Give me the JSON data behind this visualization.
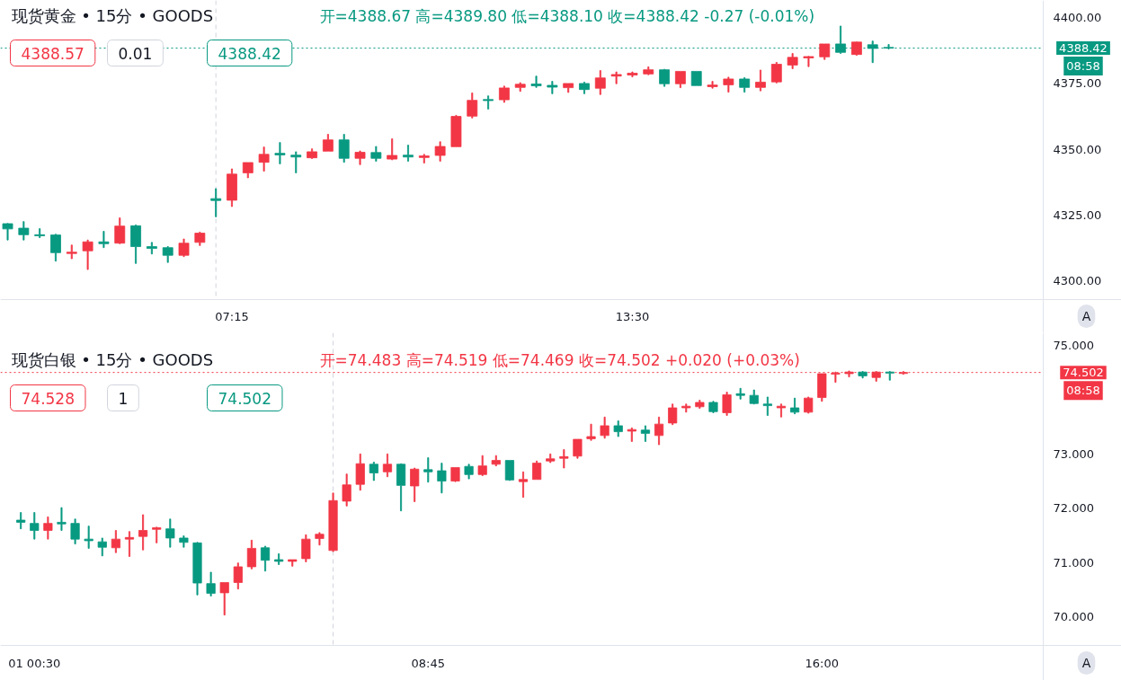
{
  "chart_data": [
    {
      "type": "candlestick",
      "title": "现货黄金 • 15分 • GOODS",
      "subtitle": "开=4388.67 高=4389.80 低=4388.10 收=4388.42 -0.27 (-0.01%)",
      "categories": [
        null,
        null,
        null,
        null,
        null,
        null,
        null,
        null,
        null,
        null,
        null,
        null,
        null,
        null,
        "07:15",
        null,
        null,
        null,
        null,
        null,
        null,
        null,
        null,
        null,
        null,
        null,
        null,
        null,
        null,
        null,
        null,
        null,
        null,
        null,
        null,
        null,
        null,
        null,
        null,
        "13:30",
        null,
        null,
        null,
        null,
        null,
        null,
        null,
        null,
        null,
        null,
        null,
        null,
        null,
        null,
        null,
        null,
        null,
        null,
        null,
        null,
        null,
        null,
        null,
        null,
        null
      ],
      "ohlc": [
        [
          4321.8,
          4321.9,
          4315.6,
          4319.8
        ],
        [
          4320.1,
          4322.6,
          4315.6,
          4317.6
        ],
        [
          4317.6,
          4319.9,
          4316.5,
          4317.2
        ],
        [
          4317.5,
          4317.8,
          4307.6,
          4310.8
        ],
        [
          4310.5,
          4313.7,
          4308.5,
          4311.0
        ],
        [
          4311.5,
          4315.6,
          4304.4,
          4314.9
        ],
        [
          4314.9,
          4318.9,
          4312.7,
          4314.2
        ],
        [
          4314.4,
          4324.0,
          4314.2,
          4320.9
        ],
        [
          4321.0,
          4321.3,
          4306.7,
          4313.1
        ],
        [
          4313.1,
          4314.7,
          4310.3,
          4312.4
        ],
        [
          4312.7,
          4313.1,
          4307.1,
          4309.8
        ],
        [
          4309.8,
          4316.0,
          4309.3,
          4314.4
        ],
        [
          4314.7,
          4318.6,
          4313.5,
          4318.2
        ],
        [
          4331.3,
          4335.1,
          4324.4,
          4330.6
        ],
        [
          4330.7,
          4342.6,
          4328.3,
          4340.6
        ],
        [
          4341.1,
          4345.0,
          4339.2,
          4345.0
        ],
        [
          4345.1,
          4350.9,
          4341.7,
          4348.1
        ],
        [
          4348.5,
          4352.6,
          4344.5,
          4347.9
        ],
        [
          4347.8,
          4349.1,
          4341.1,
          4347.1
        ],
        [
          4346.8,
          4350.2,
          4346.5,
          4349.1
        ],
        [
          4349.3,
          4355.7,
          4349.3,
          4353.6
        ],
        [
          4353.6,
          4355.7,
          4345.1,
          4346.6
        ],
        [
          4346.6,
          4349.4,
          4344.2,
          4348.9
        ],
        [
          4348.8,
          4351.1,
          4345.5,
          4346.6
        ],
        [
          4346.3,
          4354.0,
          4346.0,
          4347.7
        ],
        [
          4347.8,
          4351.6,
          4345.5,
          4347.1
        ],
        [
          4346.9,
          4348.1,
          4344.8,
          4347.5
        ],
        [
          4347.7,
          4352.9,
          4345.5,
          4351.1
        ],
        [
          4351.0,
          4362.9,
          4351.0,
          4362.5
        ],
        [
          4362.6,
          4371.4,
          4361.9,
          4368.6
        ],
        [
          4368.9,
          4370.3,
          4365.3,
          4368.5
        ],
        [
          4368.8,
          4374.0,
          4367.8,
          4373.3
        ],
        [
          4373.5,
          4375.3,
          4372.0,
          4374.7
        ],
        [
          4374.8,
          4377.8,
          4373.5,
          4374.1
        ],
        [
          4374.3,
          4375.8,
          4371.1,
          4373.6
        ],
        [
          4373.4,
          4375.0,
          4371.6,
          4375.0
        ],
        [
          4375.0,
          4375.5,
          4371.1,
          4372.7
        ],
        [
          4373.2,
          4379.9,
          4370.8,
          4377.1
        ],
        [
          4377.8,
          4379.4,
          4374.9,
          4378.4
        ],
        [
          4378.2,
          4379.4,
          4377.5,
          4378.9
        ],
        [
          4378.6,
          4381.3,
          4378.3,
          4380.2
        ],
        [
          4380.2,
          4380.4,
          4373.9,
          4374.9
        ],
        [
          4374.9,
          4379.6,
          4373.4,
          4379.6
        ],
        [
          4379.6,
          4379.6,
          4374.2,
          4374.2
        ],
        [
          4373.8,
          4375.8,
          4373.2,
          4374.4
        ],
        [
          4374.5,
          4377.4,
          4371.7,
          4376.7
        ],
        [
          4376.7,
          4377.2,
          4371.7,
          4373.5
        ],
        [
          4373.5,
          4380.1,
          4372.2,
          4375.5
        ],
        [
          4375.6,
          4383.0,
          4375.2,
          4382.3
        ],
        [
          4382.0,
          4386.4,
          4380.6,
          4384.9
        ],
        [
          4384.7,
          4385.3,
          4381.4,
          4385.2
        ],
        [
          4385.1,
          4390.0,
          4384.1,
          4390.0
        ],
        [
          4390.0,
          4396.8,
          4386.4,
          4386.8
        ],
        [
          4386.0,
          4390.8,
          4385.7,
          4390.7
        ],
        [
          4389.7,
          4391.1,
          4382.9,
          4388.3
        ],
        [
          4388.67,
          4389.8,
          4388.1,
          4388.42
        ],
        null,
        null,
        null,
        null,
        null,
        null,
        null,
        null,
        null
      ],
      "colors": [
        "#089981",
        "#089981",
        "#089981",
        "#089981",
        "#f23645",
        "#f23645",
        "#089981",
        "#f23645",
        "#089981",
        "#089981",
        "#089981",
        "#f23645",
        "#f23645",
        "#089981",
        "#f23645",
        "#f23645",
        "#f23645",
        "#089981",
        "#089981",
        "#f23645",
        "#f23645",
        "#089981",
        "#f23645",
        "#089981",
        "#f23645",
        "#089981",
        "#f23645",
        "#f23645",
        "#f23645",
        "#f23645",
        "#089981",
        "#f23645",
        "#f23645",
        "#089981",
        "#089981",
        "#f23645",
        "#089981",
        "#f23645",
        "#f23645",
        "#f23645",
        "#f23645",
        "#089981",
        "#f23645",
        "#089981",
        "#f23645",
        "#f23645",
        "#089981",
        "#f23645",
        "#f23645",
        "#f23645",
        "#f23645",
        "#f23645",
        "#089981",
        "#f23645",
        "#089981",
        "#089981",
        null,
        null,
        null,
        null,
        null,
        null,
        null,
        null,
        null
      ],
      "ylim": [
        4293,
        4406.5
      ],
      "yticks": [
        {
          "value": 4300,
          "label": "4300.00"
        },
        {
          "value": 4325,
          "label": "4325.00"
        },
        {
          "value": 4350,
          "label": "4350.00"
        },
        {
          "value": 4375,
          "label": "4375.00"
        },
        {
          "value": 4400,
          "label": "4400.00"
        }
      ],
      "ref_lines": [
        {
          "axis": "y",
          "value": 4388.42,
          "label": "4388.42",
          "color": "#089981",
          "line_style": "dotted"
        }
      ],
      "annotations": [
        "4388.57",
        "0.01",
        "4388.42",
        "08:58",
        "A"
      ]
    },
    {
      "type": "candlestick",
      "title": "现货白银 • 15分 • GOODS",
      "subtitle": "开=74.483 高=74.519 低=74.469 收=74.502 +0.020 (+0.03%)",
      "categories": [
        null,
        "01 00:30",
        null,
        null,
        null,
        null,
        null,
        null,
        null,
        null,
        null,
        null,
        null,
        null,
        null,
        null,
        null,
        null,
        null,
        null,
        null,
        null,
        null,
        null,
        null,
        null,
        null,
        null,
        null,
        null,
        "08:45",
        null,
        null,
        null,
        null,
        null,
        null,
        null,
        null,
        null,
        null,
        null,
        null,
        null,
        null,
        null,
        null,
        null,
        null,
        null,
        null,
        null,
        null,
        null,
        null,
        null,
        null,
        null,
        null,
        "16:00",
        null,
        null,
        null,
        null,
        null,
        null,
        null,
        null,
        null,
        null,
        null,
        null,
        null,
        null,
        null,
        null
      ],
      "ohlc": [
        [
          71.78,
          71.92,
          71.62,
          71.74
        ],
        [
          71.72,
          71.92,
          71.43,
          71.59
        ],
        [
          71.59,
          71.84,
          71.43,
          71.72
        ],
        [
          71.74,
          72.01,
          71.59,
          71.71
        ],
        [
          71.72,
          71.8,
          71.34,
          71.43
        ],
        [
          71.43,
          71.67,
          71.26,
          71.4
        ],
        [
          71.38,
          71.45,
          71.12,
          71.28
        ],
        [
          71.27,
          71.59,
          71.18,
          71.43
        ],
        [
          71.43,
          71.57,
          71.11,
          71.46
        ],
        [
          71.48,
          71.88,
          71.23,
          71.59
        ],
        [
          71.61,
          71.65,
          71.36,
          71.64
        ],
        [
          71.62,
          71.8,
          71.28,
          71.45
        ],
        [
          71.45,
          71.49,
          71.28,
          71.37
        ],
        [
          71.36,
          71.37,
          70.4,
          70.62
        ],
        [
          70.61,
          70.82,
          70.38,
          70.43
        ],
        [
          70.44,
          70.63,
          70.03,
          70.63
        ],
        [
          70.63,
          70.99,
          70.51,
          70.92
        ],
        [
          70.92,
          71.41,
          70.88,
          71.26
        ],
        [
          71.27,
          71.3,
          70.84,
          71.04
        ],
        [
          71.05,
          71.16,
          70.96,
          71.02
        ],
        [
          71.02,
          71.05,
          70.93,
          71.05
        ],
        [
          71.07,
          71.51,
          71.01,
          71.43
        ],
        [
          71.44,
          71.55,
          71.32,
          71.52
        ],
        [
          71.22,
          72.28,
          71.2,
          72.14
        ],
        [
          72.13,
          72.63,
          72.04,
          72.43
        ],
        [
          72.44,
          73.0,
          72.33,
          72.82
        ],
        [
          72.81,
          72.85,
          72.51,
          72.65
        ],
        [
          72.67,
          73.0,
          72.58,
          72.81
        ],
        [
          72.81,
          72.82,
          71.95,
          72.42
        ],
        [
          72.41,
          72.74,
          72.12,
          72.72
        ],
        [
          72.71,
          72.93,
          72.48,
          72.67
        ],
        [
          72.69,
          72.83,
          72.28,
          72.5
        ],
        [
          72.5,
          72.75,
          72.49,
          72.75
        ],
        [
          72.77,
          72.81,
          72.54,
          72.62
        ],
        [
          72.62,
          72.97,
          72.6,
          72.78
        ],
        [
          72.81,
          72.97,
          72.78,
          72.88
        ],
        [
          72.88,
          72.88,
          72.51,
          72.52
        ],
        [
          72.49,
          72.67,
          72.2,
          72.53
        ],
        [
          72.53,
          72.87,
          72.53,
          72.83
        ],
        [
          72.87,
          73.0,
          72.84,
          72.91
        ],
        [
          72.92,
          73.08,
          72.74,
          72.95
        ],
        [
          72.96,
          73.27,
          72.92,
          73.27
        ],
        [
          73.28,
          73.55,
          73.25,
          73.32
        ],
        [
          73.34,
          73.68,
          73.29,
          73.52
        ],
        [
          73.52,
          73.61,
          73.32,
          73.41
        ],
        [
          73.42,
          73.48,
          73.23,
          73.45
        ],
        [
          73.44,
          73.52,
          73.23,
          73.38
        ],
        [
          73.34,
          73.68,
          73.17,
          73.55
        ],
        [
          73.57,
          73.92,
          73.54,
          73.85
        ],
        [
          73.85,
          73.92,
          73.77,
          73.88
        ],
        [
          73.87,
          73.99,
          73.84,
          73.95
        ],
        [
          73.95,
          73.97,
          73.76,
          73.78
        ],
        [
          73.76,
          74.14,
          73.71,
          74.09
        ],
        [
          74.11,
          74.21,
          74.01,
          74.08
        ],
        [
          74.08,
          74.18,
          73.92,
          73.93
        ],
        [
          73.92,
          74.05,
          73.71,
          73.89
        ],
        [
          73.85,
          73.92,
          73.68,
          73.88
        ],
        [
          73.85,
          74.03,
          73.74,
          73.77
        ],
        [
          73.77,
          74.05,
          73.75,
          74.03
        ],
        [
          74.04,
          74.48,
          73.97,
          74.48
        ],
        [
          74.47,
          74.51,
          74.32,
          74.49
        ],
        [
          74.48,
          74.53,
          74.42,
          74.51
        ],
        [
          74.51,
          74.52,
          74.4,
          74.44
        ],
        [
          74.41,
          74.52,
          74.34,
          74.51
        ],
        [
          74.51,
          74.52,
          74.36,
          74.49
        ],
        [
          74.483,
          74.519,
          74.469,
          74.502
        ],
        null,
        null,
        null,
        null,
        null,
        null,
        null,
        null,
        null,
        null
      ],
      "colors": [
        "#089981",
        "#089981",
        "#f23645",
        "#089981",
        "#089981",
        "#089981",
        "#089981",
        "#f23645",
        "#f23645",
        "#f23645",
        "#f23645",
        "#089981",
        "#089981",
        "#089981",
        "#089981",
        "#f23645",
        "#f23645",
        "#f23645",
        "#089981",
        "#089981",
        "#f23645",
        "#f23645",
        "#f23645",
        "#f23645",
        "#f23645",
        "#f23645",
        "#089981",
        "#f23645",
        "#089981",
        "#f23645",
        "#089981",
        "#089981",
        "#f23645",
        "#089981",
        "#f23645",
        "#f23645",
        "#089981",
        "#f23645",
        "#f23645",
        "#f23645",
        "#f23645",
        "#f23645",
        "#f23645",
        "#f23645",
        "#089981",
        "#f23645",
        "#089981",
        "#f23645",
        "#f23645",
        "#f23645",
        "#f23645",
        "#089981",
        "#f23645",
        "#089981",
        "#089981",
        "#089981",
        "#f23645",
        "#089981",
        "#f23645",
        "#f23645",
        "#f23645",
        "#f23645",
        "#089981",
        "#f23645",
        "#089981",
        "#f23645",
        null,
        null,
        null,
        null,
        null,
        null,
        null,
        null,
        null,
        null
      ],
      "ylim": [
        69.47,
        75.2
      ],
      "yticks": [
        {
          "value": 70,
          "label": "70.000"
        },
        {
          "value": 71,
          "label": "71.000"
        },
        {
          "value": 72,
          "label": "72.000"
        },
        {
          "value": 73,
          "label": "73.000"
        },
        {
          "value": 75,
          "label": "75.000"
        }
      ],
      "ref_lines": [
        {
          "axis": "y",
          "value": 74.502,
          "label": "74.502",
          "color": "#f23645",
          "line_style": "dotted"
        }
      ],
      "annotations": [
        "74.528",
        "1",
        "74.502",
        "08:58",
        "A"
      ]
    }
  ]
}
